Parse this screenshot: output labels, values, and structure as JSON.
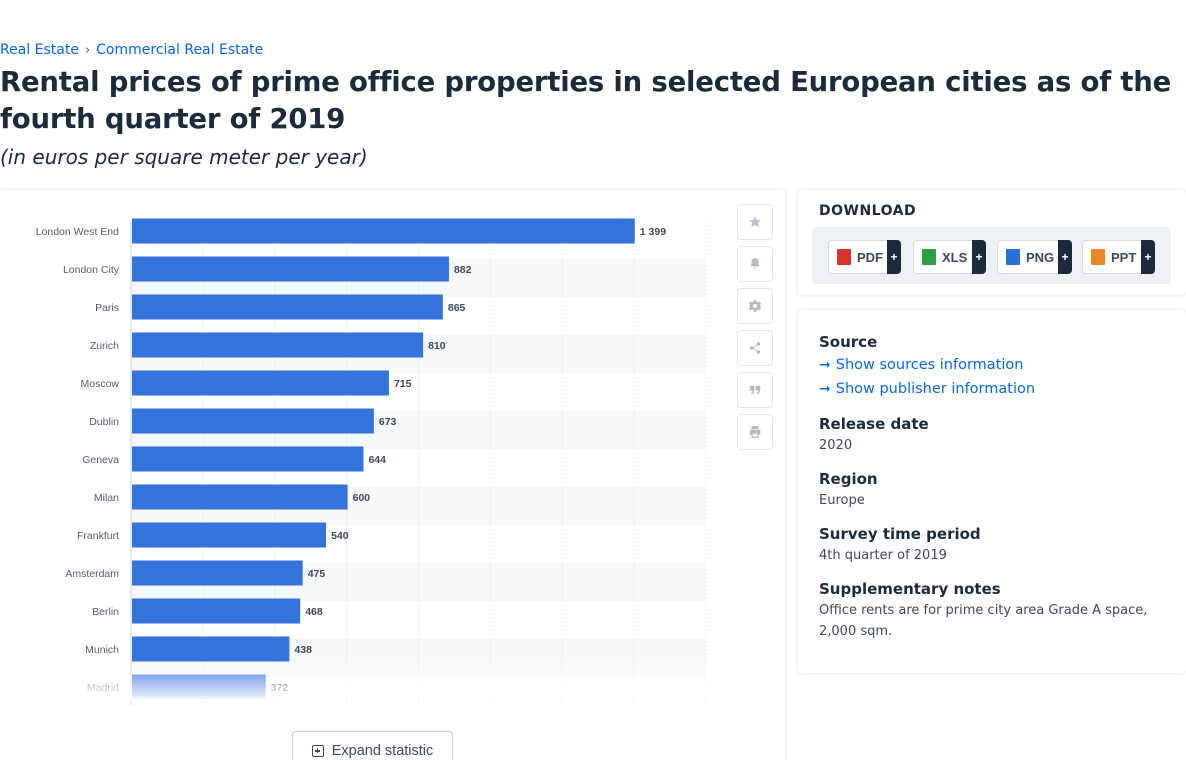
{
  "breadcrumb": {
    "items": [
      "Real Estate",
      "Commercial Real Estate"
    ],
    "separator": "›"
  },
  "page": {
    "title": "Rental prices of prime office properties in selected European cities as of the fourth quarter of 2019",
    "subtitle": "(in euros per square meter per year)"
  },
  "chart_data": {
    "type": "bar",
    "orientation": "horizontal",
    "categories": [
      "London West End",
      "London City",
      "Paris",
      "Zurich",
      "Moscow",
      "Dublin",
      "Geneva",
      "Milan",
      "Frankfurt",
      "Amsterdam",
      "Berlin",
      "Munich",
      "Madrid"
    ],
    "value_labels": [
      "1 399",
      "882",
      "865",
      "810",
      "715",
      "673",
      "644",
      "600",
      "540",
      "475",
      "468",
      "438",
      "372"
    ],
    "values": [
      1399,
      882,
      865,
      810,
      715,
      673,
      644,
      600,
      540,
      475,
      468,
      438,
      372
    ],
    "xlim": [
      0,
      1600
    ],
    "bar_color": "#3472dc",
    "grid": true,
    "title": "",
    "xlabel": "",
    "ylabel": ""
  },
  "tools": [
    {
      "icon": "star-icon",
      "name": "favorite-button"
    },
    {
      "icon": "bell-icon",
      "name": "notification-button"
    },
    {
      "icon": "gear-icon",
      "name": "settings-button"
    },
    {
      "icon": "share-icon",
      "name": "share-button"
    },
    {
      "icon": "quote-icon",
      "name": "cite-button"
    },
    {
      "icon": "print-icon",
      "name": "print-button"
    }
  ],
  "expand": {
    "label": "Expand statistic"
  },
  "download": {
    "title": "DOWNLOAD",
    "formats": [
      {
        "label": "PDF",
        "color": "#d9342b"
      },
      {
        "label": "XLS",
        "color": "#2f9e44"
      },
      {
        "label": "PNG",
        "color": "#2a6fd6"
      },
      {
        "label": "PPT",
        "color": "#e8862a"
      }
    ],
    "plus": "+"
  },
  "info": {
    "source_heading": "Source",
    "show_sources": "Show sources information",
    "show_publisher": "Show publisher information",
    "release_heading": "Release date",
    "release_value": "2020",
    "region_heading": "Region",
    "region_value": "Europe",
    "survey_heading": "Survey time period",
    "survey_value": "4th quarter of 2019",
    "notes_heading": "Supplementary notes",
    "notes_value": "Office rents are for prime city area Grade A space, 2,000 sqm."
  }
}
